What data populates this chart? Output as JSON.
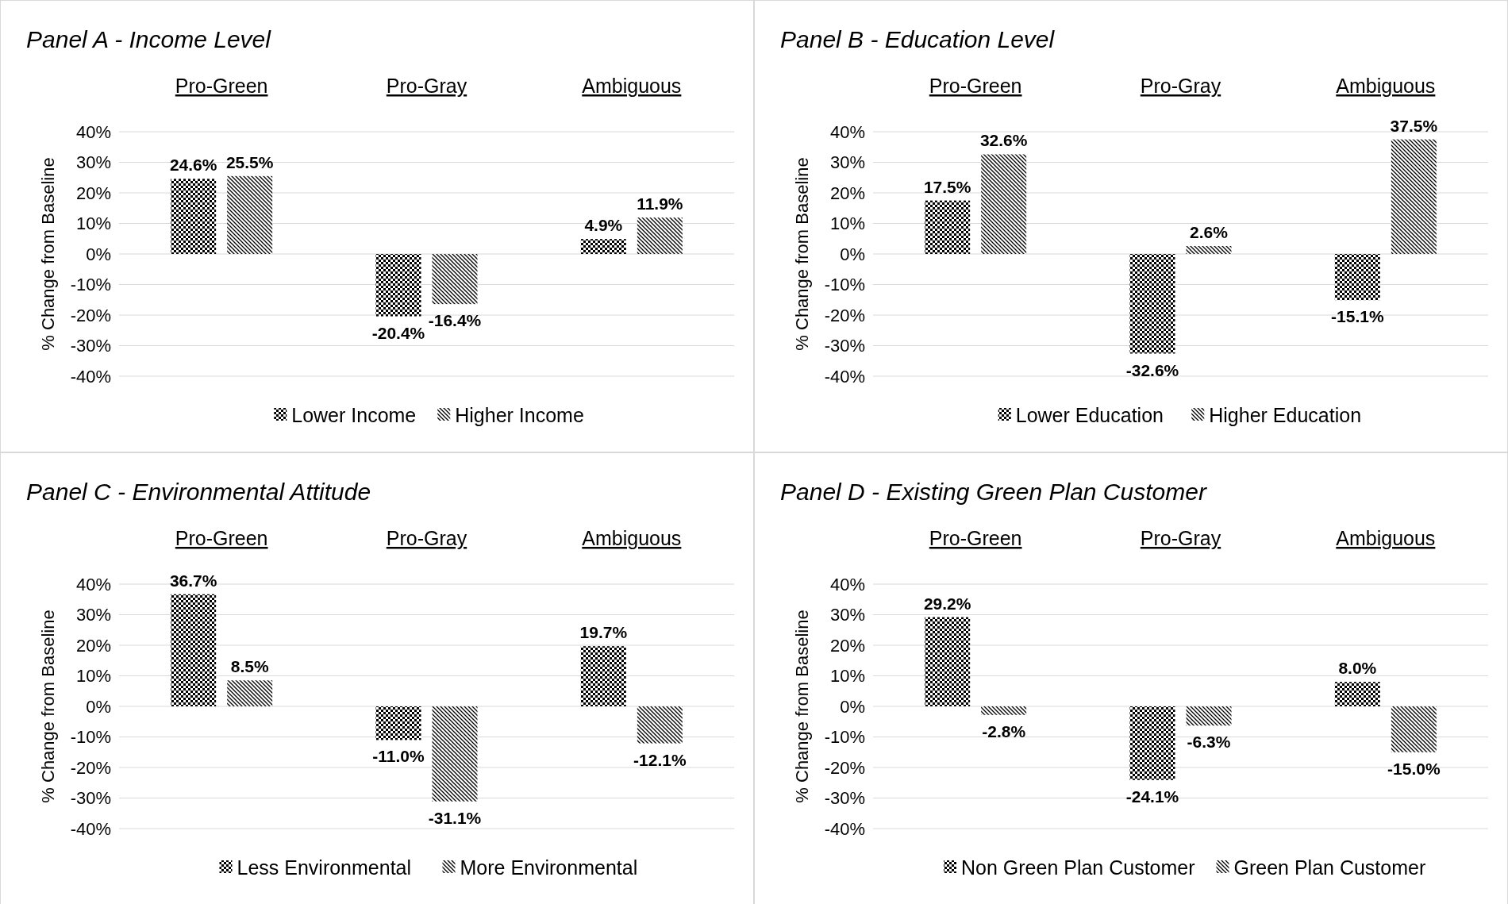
{
  "chart_data": [
    {
      "type": "bar",
      "title": "Panel A - Income Level",
      "ylabel": "% Change from Baseline",
      "categories": [
        "Pro-Green",
        "Pro-Gray",
        "Ambiguous"
      ],
      "ylim": [
        -40,
        40
      ],
      "yticks": [
        {
          "value": -40,
          "label": "-40%"
        },
        {
          "value": -30,
          "label": "-30%"
        },
        {
          "value": -20,
          "label": "-20%"
        },
        {
          "value": -10,
          "label": "-10%"
        },
        {
          "value": 0,
          "label": "0%"
        },
        {
          "value": 10,
          "label": "10%"
        },
        {
          "value": 20,
          "label": "20%"
        },
        {
          "value": 30,
          "label": "30%"
        },
        {
          "value": 40,
          "label": "40%"
        }
      ],
      "grid": "y",
      "legend": "bottom",
      "series": [
        {
          "name": "Lower Income",
          "color": "#000000",
          "values": [
            24.6,
            -20.4,
            4.9
          ],
          "value_labels": [
            "24.6%",
            "-20.4%",
            "4.9%"
          ]
        },
        {
          "name": "Higher Income",
          "color": "#000000",
          "values": [
            25.5,
            -16.4,
            11.9
          ],
          "value_labels": [
            "25.5%",
            "-16.4%",
            "11.9%"
          ]
        }
      ]
    },
    {
      "type": "bar",
      "title": "Panel B - Education Level",
      "ylabel": "% Change from Baseline",
      "categories": [
        "Pro-Green",
        "Pro-Gray",
        "Ambiguous"
      ],
      "ylim": [
        -40,
        40
      ],
      "yticks": [
        {
          "value": -40,
          "label": "-40%"
        },
        {
          "value": -30,
          "label": "-30%"
        },
        {
          "value": -20,
          "label": "-20%"
        },
        {
          "value": -10,
          "label": "-10%"
        },
        {
          "value": 0,
          "label": "0%"
        },
        {
          "value": 10,
          "label": "10%"
        },
        {
          "value": 20,
          "label": "20%"
        },
        {
          "value": 30,
          "label": "30%"
        },
        {
          "value": 40,
          "label": "40%"
        }
      ],
      "grid": "y",
      "legend": "bottom",
      "series": [
        {
          "name": "Lower Education",
          "color": "#000000",
          "values": [
            17.5,
            -32.6,
            -15.1
          ],
          "value_labels": [
            "17.5%",
            "-32.6%",
            "-15.1%"
          ]
        },
        {
          "name": "Higher Education",
          "color": "#000000",
          "values": [
            32.6,
            2.6,
            37.5
          ],
          "value_labels": [
            "32.6%",
            "2.6%",
            "37.5%"
          ]
        }
      ]
    },
    {
      "type": "bar",
      "title": "Panel C - Environmental Attitude",
      "ylabel": "% Change from Baseline",
      "categories": [
        "Pro-Green",
        "Pro-Gray",
        "Ambiguous"
      ],
      "ylim": [
        -40,
        40
      ],
      "yticks": [
        {
          "value": -40,
          "label": "-40%"
        },
        {
          "value": -30,
          "label": "-30%"
        },
        {
          "value": -20,
          "label": "-20%"
        },
        {
          "value": -10,
          "label": "-10%"
        },
        {
          "value": 0,
          "label": "0%"
        },
        {
          "value": 10,
          "label": "10%"
        },
        {
          "value": 20,
          "label": "20%"
        },
        {
          "value": 30,
          "label": "30%"
        },
        {
          "value": 40,
          "label": "40%"
        }
      ],
      "grid": "y",
      "legend": "bottom",
      "series": [
        {
          "name": "Less Environmental",
          "color": "#000000",
          "values": [
            36.7,
            -11.0,
            19.7
          ],
          "value_labels": [
            "36.7%",
            "-11.0%",
            "19.7%"
          ]
        },
        {
          "name": "More Environmental",
          "color": "#000000",
          "values": [
            8.5,
            -31.1,
            -12.1
          ],
          "value_labels": [
            "8.5%",
            "-31.1%",
            "-12.1%"
          ]
        }
      ]
    },
    {
      "type": "bar",
      "title": "Panel D - Existing Green Plan Customer",
      "ylabel": "% Change from Baseline",
      "categories": [
        "Pro-Green",
        "Pro-Gray",
        "Ambiguous"
      ],
      "ylim": [
        -40,
        40
      ],
      "yticks": [
        {
          "value": -40,
          "label": "-40%"
        },
        {
          "value": -30,
          "label": "-30%"
        },
        {
          "value": -20,
          "label": "-20%"
        },
        {
          "value": -10,
          "label": "-10%"
        },
        {
          "value": 0,
          "label": "0%"
        },
        {
          "value": 10,
          "label": "10%"
        },
        {
          "value": 20,
          "label": "20%"
        },
        {
          "value": 30,
          "label": "30%"
        },
        {
          "value": 40,
          "label": "40%"
        }
      ],
      "grid": "y",
      "legend": "bottom",
      "series": [
        {
          "name": "Non Green Plan Customer",
          "color": "#000000",
          "values": [
            29.2,
            -24.1,
            8.0
          ],
          "value_labels": [
            "29.2%",
            "-24.1%",
            "8.0%"
          ]
        },
        {
          "name": "Green Plan Customer",
          "color": "#000000",
          "values": [
            -2.8,
            -6.3,
            -15.0
          ],
          "value_labels": [
            "-2.8%",
            "-6.3%",
            "-15.0%"
          ]
        }
      ]
    }
  ]
}
